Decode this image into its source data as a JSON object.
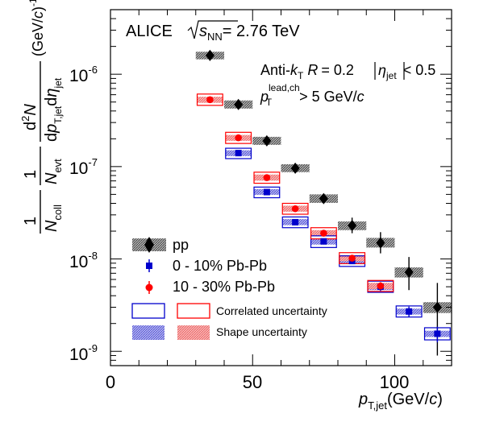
{
  "chart_data": {
    "type": "scatter",
    "title": "",
    "x_scale": "linear",
    "y_scale": "log",
    "xlim": [
      0,
      120
    ],
    "ylim": [
      7e-10,
      5e-06
    ],
    "x_ticks": [
      {
        "value": 0,
        "label": "0"
      },
      {
        "value": 50,
        "label": "50"
      },
      {
        "value": 100,
        "label": "100"
      }
    ],
    "y_ticks": [
      {
        "value": 1e-09,
        "base": "10",
        "exp": "-9"
      },
      {
        "value": 1e-08,
        "base": "10",
        "exp": "-8"
      },
      {
        "value": 1e-07,
        "base": "10",
        "exp": "-7"
      },
      {
        "value": 1e-06,
        "base": "10",
        "exp": "-6"
      }
    ],
    "xlabel": {
      "main": "p",
      "sub": "T,jet",
      "unit": "(GeV/",
      "unit_c": "c",
      "unit_close": ")"
    },
    "ylabel": {
      "f1_num": "1",
      "f1_den": "N",
      "f1_den_sub": "coll",
      "f2_num": "1",
      "f2_den": "N",
      "f2_den_sub": "evt",
      "f3_num": "d",
      "f3_num_sup": "2",
      "f3_num_var": "N",
      "f3_den_d1": "d",
      "f3_den_p": "p",
      "f3_den_p_sub": "T,jet",
      "f3_den_d2": "d",
      "f3_den_eta_sub": "jet",
      "unit": "(GeV/",
      "unit_c": "c",
      "unit_close": ")",
      "unit_sup": "-1"
    },
    "annotations": {
      "experiment": "ALICE",
      "energy_var": "s",
      "energy_sub": "NN",
      "energy_val": "= 2.76 TeV",
      "algo_pre": "Anti-",
      "algo_k": "k",
      "algo_k_sub": "T",
      "algo_R": "R",
      "algo_R_val": "= 0.2",
      "eta_sym": "η",
      "eta_sub": "jet",
      "eta_cond": "< 0.5",
      "lead_p": "p",
      "lead_sub": "T",
      "lead_sup": "lead,ch",
      "lead_cond": "> 5 GeV/",
      "lead_c": "c"
    },
    "legend": {
      "placement": "bottom-left",
      "entries": [
        {
          "key": "pp",
          "label": "pp"
        },
        {
          "key": "pbpb_0_10",
          "label": "0 - 10% Pb-Pb"
        },
        {
          "key": "pbpb_10_30",
          "label": "10 - 30% Pb-Pb"
        },
        {
          "key": "corr",
          "label": "Correlated uncertainty"
        },
        {
          "key": "shape",
          "label": "Shape uncertainty"
        }
      ]
    },
    "series": [
      {
        "key": "pp",
        "marker": "diamond",
        "color": "#000000",
        "points": [
          {
            "x": 35,
            "y": 1.6e-06,
            "ylo": 1.4e-06,
            "yhi": 1.8e-06,
            "xhw": 5,
            "syslo": 1.45e-06,
            "syshi": 1.75e-06
          },
          {
            "x": 45,
            "y": 4.7e-07,
            "ylo": 4.4e-07,
            "yhi": 5e-07,
            "xhw": 5,
            "syslo": 4.25e-07,
            "syshi": 5.2e-07
          },
          {
            "x": 55,
            "y": 1.9e-07,
            "ylo": 1.75e-07,
            "yhi": 2.05e-07,
            "xhw": 5,
            "syslo": 1.72e-07,
            "syshi": 2.1e-07
          },
          {
            "x": 65,
            "y": 9.6e-08,
            "ylo": 8.9e-08,
            "yhi": 1.03e-07,
            "xhw": 5,
            "syslo": 8.7e-08,
            "syshi": 1.06e-07
          },
          {
            "x": 75,
            "y": 4.5e-08,
            "ylo": 4.05e-08,
            "yhi": 4.95e-08,
            "xhw": 5,
            "syslo": 4.05e-08,
            "syshi": 5e-08
          },
          {
            "x": 85,
            "y": 2.3e-08,
            "ylo": 1.9e-08,
            "yhi": 2.8e-08,
            "xhw": 5,
            "syslo": 2.05e-08,
            "syshi": 2.55e-08
          },
          {
            "x": 95,
            "y": 1.5e-08,
            "ylo": 1.15e-08,
            "yhi": 1.95e-08,
            "xhw": 5,
            "syslo": 1.33e-08,
            "syshi": 1.69e-08
          },
          {
            "x": 105,
            "y": 7.2e-09,
            "ylo": 4.6e-09,
            "yhi": 1.05e-08,
            "xhw": 5,
            "syslo": 6.3e-09,
            "syshi": 8.1e-09
          },
          {
            "x": 115,
            "y": 3e-09,
            "ylo": 9e-10,
            "yhi": 5.5e-09,
            "xhw": 5,
            "syslo": 2.6e-09,
            "syshi": 3.4e-09
          }
        ]
      },
      {
        "key": "pbpb_0_10",
        "marker": "square",
        "color": "#0000cc",
        "points": [
          {
            "x": 45,
            "y": 1.4e-07,
            "ylo": 1.32e-07,
            "yhi": 1.48e-07,
            "xhw": 4.5,
            "corrlo": 1.22e-07,
            "corrhi": 1.58e-07,
            "shapelo": 1.3e-07,
            "shapehi": 1.5e-07
          },
          {
            "x": 55,
            "y": 5.3e-08,
            "ylo": 5e-08,
            "yhi": 5.6e-08,
            "xhw": 4.5,
            "corrlo": 4.6e-08,
            "corrhi": 6e-08,
            "shapelo": 4.95e-08,
            "shapehi": 5.7e-08
          },
          {
            "x": 65,
            "y": 2.5e-08,
            "ylo": 2.35e-08,
            "yhi": 2.65e-08,
            "xhw": 4.5,
            "corrlo": 2.18e-08,
            "corrhi": 2.85e-08,
            "shapelo": 2.32e-08,
            "shapehi": 2.7e-08
          },
          {
            "x": 75,
            "y": 1.55e-08,
            "ylo": 1.45e-08,
            "yhi": 1.65e-08,
            "xhw": 4.5,
            "corrlo": 1.33e-08,
            "corrhi": 1.78e-08,
            "shapelo": 1.43e-08,
            "shapehi": 1.67e-08
          },
          {
            "x": 85,
            "y": 9.5e-09,
            "ylo": 8.9e-09,
            "yhi": 1.01e-08,
            "xhw": 4.5,
            "corrlo": 8.3e-09,
            "corrhi": 1.08e-08,
            "shapelo": 8.8e-09,
            "shapehi": 1.02e-08
          },
          {
            "x": 95,
            "y": 5e-09,
            "ylo": 4.5e-09,
            "yhi": 5.5e-09,
            "xhw": 4.5,
            "corrlo": 4.35e-09,
            "corrhi": 5.75e-09,
            "shapelo": 4.6e-09,
            "shapehi": 5.4e-09
          },
          {
            "x": 105,
            "y": 2.7e-09,
            "ylo": 2.35e-09,
            "yhi": 3.05e-09,
            "xhw": 4.5,
            "corrlo": 2.35e-09,
            "corrhi": 3.1e-09,
            "shapelo": 2.5e-09,
            "shapehi": 2.9e-09
          },
          {
            "x": 115,
            "y": 1.55e-09,
            "ylo": 1.25e-09,
            "yhi": 1.85e-09,
            "xhw": 4.5,
            "corrlo": 1.33e-09,
            "corrhi": 1.8e-09,
            "shapelo": 1.43e-09,
            "shapehi": 1.67e-09
          }
        ]
      },
      {
        "key": "pbpb_10_30",
        "marker": "circle",
        "color": "#ff0000",
        "points": [
          {
            "x": 35,
            "y": 5.3e-07,
            "ylo": 5e-07,
            "yhi": 5.6e-07,
            "xhw": 4.5,
            "corrlo": 4.6e-07,
            "corrhi": 6.1e-07,
            "shapelo": 4.9e-07,
            "shapehi": 5.7e-07
          },
          {
            "x": 45,
            "y": 2.05e-07,
            "ylo": 1.93e-07,
            "yhi": 2.17e-07,
            "xhw": 4.5,
            "corrlo": 1.78e-07,
            "corrhi": 2.35e-07,
            "shapelo": 1.9e-07,
            "shapehi": 2.2e-07
          },
          {
            "x": 55,
            "y": 7.6e-08,
            "ylo": 7.1e-08,
            "yhi": 8.1e-08,
            "xhw": 4.5,
            "corrlo": 6.6e-08,
            "corrhi": 8.7e-08,
            "shapelo": 7.05e-08,
            "shapehi": 8.2e-08
          },
          {
            "x": 65,
            "y": 3.5e-08,
            "ylo": 3.27e-08,
            "yhi": 3.73e-08,
            "xhw": 4.5,
            "corrlo": 3.05e-08,
            "corrhi": 4e-08,
            "shapelo": 3.25e-08,
            "shapehi": 3.77e-08
          },
          {
            "x": 75,
            "y": 1.9e-08,
            "ylo": 1.77e-08,
            "yhi": 2.03e-08,
            "xhw": 4.5,
            "corrlo": 1.65e-08,
            "corrhi": 2.18e-08,
            "shapelo": 1.76e-08,
            "shapehi": 2.05e-08
          },
          {
            "x": 85,
            "y": 1.02e-08,
            "ylo": 9.4e-09,
            "yhi": 1.1e-08,
            "xhw": 4.5,
            "corrlo": 8.9e-09,
            "corrhi": 1.17e-08,
            "shapelo": 9.45e-09,
            "shapehi": 1.1e-08
          },
          {
            "x": 95,
            "y": 5.1e-09,
            "ylo": 4.6e-09,
            "yhi": 5.6e-09,
            "xhw": 4.5,
            "corrlo": 4.45e-09,
            "corrhi": 5.85e-09,
            "shapelo": 4.7e-09,
            "shapehi": 5.5e-09
          }
        ]
      }
    ]
  }
}
